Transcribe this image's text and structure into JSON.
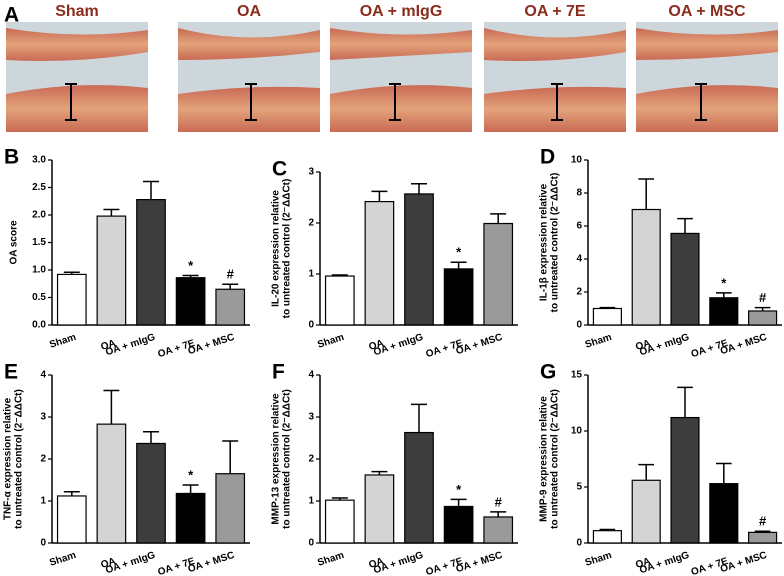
{
  "panel_a": {
    "label": "A",
    "titles": [
      "Sham",
      "OA",
      "OA + mIgG",
      "OA + 7E",
      "OA + MSC"
    ]
  },
  "chart_data": [
    {
      "type": "bar",
      "panel": "B",
      "ylabel": [
        "OA score"
      ],
      "categories": [
        "Sham",
        "OA",
        "OA + mIgG",
        "OA + 7E",
        "OA + MSC"
      ],
      "values": [
        0.92,
        1.98,
        2.28,
        0.86,
        0.65
      ],
      "errors": [
        0.04,
        0.12,
        0.33,
        0.04,
        0.09
      ],
      "colors": [
        "#ffffff",
        "#d4d4d4",
        "#3d3d3d",
        "#000000",
        "#9a9a9a"
      ],
      "annotations": [
        null,
        null,
        null,
        "*",
        "#"
      ],
      "ylim": [
        0,
        3
      ],
      "yticks": [
        {
          "value": 0,
          "label": "0.0"
        },
        {
          "value": 0.5,
          "label": "0.5"
        },
        {
          "value": 1,
          "label": "1.0"
        },
        {
          "value": 1.5,
          "label": "1.5"
        },
        {
          "value": 2,
          "label": "2.0"
        },
        {
          "value": 2.5,
          "label": "2.5"
        },
        {
          "value": 3,
          "label": "3.0"
        }
      ]
    },
    {
      "type": "bar",
      "panel": "C",
      "ylabel": [
        "IL-20 expression relative",
        "to untreated control (2⁻ΔΔCt)"
      ],
      "categories": [
        "Sham",
        "OA",
        "OA + mIgG",
        "OA + 7E",
        "OA + MSC"
      ],
      "values": [
        0.96,
        2.42,
        2.57,
        1.1,
        1.99
      ],
      "errors": [
        0.02,
        0.2,
        0.2,
        0.13,
        0.19
      ],
      "colors": [
        "#ffffff",
        "#d4d4d4",
        "#3d3d3d",
        "#000000",
        "#9a9a9a"
      ],
      "annotations": [
        null,
        null,
        null,
        "*",
        null
      ],
      "ylim": [
        0,
        3
      ],
      "yticks": [
        0,
        1,
        2,
        3
      ]
    },
    {
      "type": "bar",
      "panel": "D",
      "ylabel": [
        "IL-1β expression relative",
        "to untreated control (2⁻ΔΔCt)"
      ],
      "categories": [
        "Sham",
        "OA",
        "OA + mIgG",
        "OA + 7E",
        "OA + MSC"
      ],
      "values": [
        1.0,
        7.0,
        5.55,
        1.65,
        0.85
      ],
      "errors": [
        0.05,
        1.85,
        0.9,
        0.3,
        0.2
      ],
      "colors": [
        "#ffffff",
        "#d4d4d4",
        "#3d3d3d",
        "#000000",
        "#9a9a9a"
      ],
      "annotations": [
        null,
        null,
        null,
        "*",
        "#"
      ],
      "ylim": [
        0,
        10
      ],
      "yticks": [
        0,
        2,
        4,
        6,
        8,
        10
      ]
    },
    {
      "type": "bar",
      "panel": "E",
      "ylabel": [
        "TNF-α expression relative",
        "to untreated control (2⁻ΔΔCt)"
      ],
      "categories": [
        "Sham",
        "OA",
        "OA + mIgG",
        "OA + 7E",
        "OA + MSC"
      ],
      "values": [
        1.12,
        2.83,
        2.37,
        1.18,
        1.65
      ],
      "errors": [
        0.1,
        0.8,
        0.28,
        0.2,
        0.78
      ],
      "colors": [
        "#ffffff",
        "#d4d4d4",
        "#3d3d3d",
        "#000000",
        "#9a9a9a"
      ],
      "annotations": [
        null,
        null,
        null,
        "*",
        null
      ],
      "ylim": [
        0,
        4
      ],
      "yticks": [
        0,
        1,
        2,
        3,
        4
      ]
    },
    {
      "type": "bar",
      "panel": "F",
      "ylabel": [
        "MMP-13 expression relative",
        "to untreated control (2⁻ΔΔCt)"
      ],
      "categories": [
        "Sham",
        "OA",
        "OA + mIgG",
        "OA + 7E",
        "OA + MSC"
      ],
      "values": [
        1.02,
        1.62,
        2.63,
        0.87,
        0.62
      ],
      "errors": [
        0.05,
        0.08,
        0.67,
        0.17,
        0.12
      ],
      "colors": [
        "#ffffff",
        "#d4d4d4",
        "#3d3d3d",
        "#000000",
        "#9a9a9a"
      ],
      "annotations": [
        null,
        null,
        null,
        "*",
        "#"
      ],
      "ylim": [
        0,
        4
      ],
      "yticks": [
        0,
        1,
        2,
        3,
        4
      ]
    },
    {
      "type": "bar",
      "panel": "G",
      "ylabel": [
        "MMP-9 expression relative",
        "to untreated control (2⁻ΔΔCt)"
      ],
      "categories": [
        "Sham",
        "OA",
        "OA + mIgG",
        "OA + 7E",
        "OA + MSC"
      ],
      "values": [
        1.1,
        5.6,
        11.2,
        5.3,
        0.95
      ],
      "errors": [
        0.1,
        1.4,
        2.7,
        1.8,
        0.1
      ],
      "colors": [
        "#ffffff",
        "#d4d4d4",
        "#3d3d3d",
        "#000000",
        "#9a9a9a"
      ],
      "annotations": [
        null,
        null,
        null,
        null,
        "#"
      ],
      "ylim": [
        0,
        15
      ],
      "yticks": [
        0,
        5,
        10,
        15
      ]
    }
  ]
}
